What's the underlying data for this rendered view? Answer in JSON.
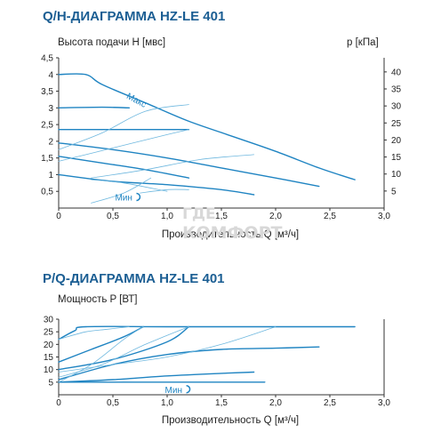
{
  "chart_data": [
    {
      "type": "line",
      "title": "Q/H-ДИАГРАММА HZ-LE 401",
      "ylabel": "Высота подачи H [мвс]",
      "y2label": "p [кПа]",
      "xlabel": "Производительность  Q [м³/ч]",
      "xlim": [
        0,
        3.0
      ],
      "ylim": [
        0,
        4.5
      ],
      "xticks": [
        "0",
        "0,5",
        "1,0",
        "1,5",
        "2,0",
        "2,5",
        "3,0"
      ],
      "yticks": [
        "4,5",
        "4",
        "3,5",
        "3",
        "2,5",
        "2",
        "1,5",
        "1",
        "0,5"
      ],
      "y2ticks": [
        "40",
        "35",
        "30",
        "25",
        "20",
        "15",
        "10",
        "5"
      ],
      "max_label": "Макс",
      "min_label": "Мин",
      "series": [
        {
          "x": [
            0,
            0.25,
            0.4,
            0.8,
            1.2,
            1.6,
            2.0,
            2.4,
            2.73
          ],
          "y": [
            4.0,
            4.0,
            3.7,
            3.15,
            2.6,
            2.15,
            1.7,
            1.2,
            0.85
          ]
        },
        {
          "x": [
            0,
            0.4,
            0.65
          ],
          "y": [
            3.0,
            3.02,
            3.0
          ]
        },
        {
          "x": [
            0,
            0.5,
            1.2
          ],
          "y": [
            2.35,
            2.35,
            2.35
          ]
        },
        {
          "x": [
            0,
            0.5,
            1.0,
            1.5,
            2.0,
            2.4
          ],
          "y": [
            1.95,
            1.75,
            1.5,
            1.2,
            0.9,
            0.65
          ]
        },
        {
          "x": [
            0,
            0.4,
            0.8,
            1.2
          ],
          "y": [
            1.55,
            1.35,
            1.15,
            0.9
          ]
        },
        {
          "x": [
            0,
            0.5,
            1.0,
            1.5,
            1.8
          ],
          "y": [
            1.0,
            0.8,
            0.7,
            0.55,
            0.4
          ]
        },
        {
          "x": [
            0.3,
            0.6,
            0.85
          ],
          "y": [
            0.15,
            0.45,
            0.9
          ],
          "style": "thin"
        },
        {
          "x": [
            0,
            0.4,
            0.8,
            1.2
          ],
          "y": [
            1.75,
            2.25,
            2.9,
            3.1
          ],
          "style": "thin"
        },
        {
          "x": [
            0,
            0.5,
            1.0,
            1.2
          ],
          "y": [
            1.4,
            1.8,
            2.2,
            2.35
          ],
          "style": "thin"
        },
        {
          "x": [
            0.3,
            0.8,
            1.3,
            1.8
          ],
          "y": [
            0.9,
            1.15,
            1.45,
            1.6
          ],
          "style": "thin"
        },
        {
          "x": [
            0.75,
            1.0,
            1.2
          ],
          "y": [
            0.45,
            0.55,
            0.55
          ],
          "style": "thin"
        },
        {
          "x": [
            0.3,
            0.6,
            1.0
          ],
          "y": [
            0.85,
            0.75,
            0.5
          ],
          "style": "thin"
        }
      ]
    },
    {
      "type": "line",
      "title": "P/Q-ДИАГРАММА HZ-LE 401",
      "ylabel": "Мощность P [ВТ]",
      "xlabel": "Производительность  Q [м³/ч]",
      "xlim": [
        0,
        3.0
      ],
      "ylim": [
        0,
        30
      ],
      "xticks": [
        "0",
        "0,5",
        "1,0",
        "1,5",
        "2,0",
        "2,5",
        "3,0"
      ],
      "yticks": [
        "30",
        "25",
        "20",
        "15",
        "10",
        "5"
      ],
      "min_label": "Мин",
      "series": [
        {
          "x": [
            0,
            0.15,
            0.25,
            1.0,
            2.0,
            2.73
          ],
          "y": [
            22,
            25.5,
            27,
            27,
            27,
            27
          ]
        },
        {
          "x": [
            0,
            0.3,
            0.6,
            0.78
          ],
          "y": [
            13,
            18,
            23,
            27
          ]
        },
        {
          "x": [
            0,
            0.5,
            1.0,
            1.2
          ],
          "y": [
            10,
            14,
            21,
            27
          ]
        },
        {
          "x": [
            0,
            0.5,
            1.0,
            1.5,
            2.0,
            2.4
          ],
          "y": [
            6,
            12,
            16,
            18,
            18.5,
            19
          ]
        },
        {
          "x": [
            0,
            0.5,
            1.0,
            1.5,
            1.8
          ],
          "y": [
            5,
            6,
            7.5,
            8.5,
            9
          ]
        },
        {
          "x": [
            0,
            0.5,
            1.0,
            1.5,
            1.9
          ],
          "y": [
            5,
            5,
            5,
            5,
            5
          ]
        },
        {
          "x": [
            0,
            0.4,
            0.8,
            1.2
          ],
          "y": [
            7,
            12,
            20,
            27
          ],
          "style": "thin"
        },
        {
          "x": [
            0,
            0.5,
            1.0,
            1.5,
            2.0
          ],
          "y": [
            9,
            12,
            15,
            20,
            27
          ],
          "style": "thin"
        },
        {
          "x": [
            0,
            0.3,
            0.6,
            0.78
          ],
          "y": [
            5,
            12,
            22,
            27
          ],
          "style": "thin"
        },
        {
          "x": [
            0,
            0.25,
            0.45,
            0.65
          ],
          "y": [
            22,
            25,
            26,
            27
          ],
          "style": "thin"
        }
      ]
    }
  ],
  "watermark": {
    "line1": "ГДЕ",
    "line2": "КОМФОРТ"
  },
  "colors": {
    "curve": "#1f84c2",
    "thin": "#6fb8df",
    "title": "#1b5e93",
    "axis": "#333333"
  }
}
